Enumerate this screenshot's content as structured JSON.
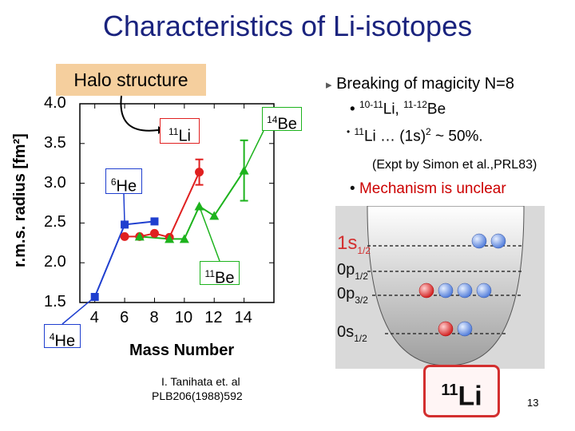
{
  "slide": {
    "title": "Characteristics of Li-isotopes",
    "halo_label": "Halo structure",
    "right": {
      "magicity": "Breaking of magicity N=8",
      "bullet1_mass1": "10-11",
      "bullet1_sym1": "Li, ",
      "bullet1_mass2": "11-12",
      "bullet1_sym2": "Be",
      "bullet2_mass": "11",
      "bullet2_rest": "Li … (1s)",
      "bullet2_sup": "2",
      "bullet2_tail": " ~ 50%.",
      "expt": "(Expt by Simon et al.,PRL83)",
      "mechanism": "Mechanism is unclear"
    },
    "citation_line1": "I. Tanihata et. al",
    "citation_line2": "PLB206(1988)592",
    "page_number": "13",
    "big_label_mass": "11",
    "big_label_sym": "Li"
  },
  "chart_data": {
    "type": "scatter",
    "xlabel": "Mass Number",
    "ylabel": "r.m.s. radius [fm²]",
    "xlim": [
      3,
      16
    ],
    "ylim": [
      1.5,
      4.0
    ],
    "xticks": [
      4,
      6,
      8,
      10,
      12,
      14
    ],
    "yticks": [
      1.5,
      2.0,
      2.5,
      3.0,
      3.5,
      4.0
    ],
    "series": [
      {
        "name": "He",
        "color": "#1f3fcf",
        "marker": "square",
        "points": [
          [
            4,
            1.57
          ],
          [
            6,
            2.48
          ],
          [
            8,
            2.52
          ]
        ]
      },
      {
        "name": "Li",
        "color": "#e02020",
        "marker": "circle",
        "points": [
          [
            6,
            2.33
          ],
          [
            7,
            2.33
          ],
          [
            8,
            2.37
          ],
          [
            9,
            2.32
          ],
          [
            11,
            3.14
          ]
        ],
        "errors": [
          [
            11,
            0.16
          ]
        ]
      },
      {
        "name": "Be",
        "color": "#1db31d",
        "marker": "triangle",
        "points": [
          [
            7,
            2.33
          ],
          [
            9,
            2.3
          ],
          [
            10,
            2.3
          ],
          [
            11,
            2.71
          ],
          [
            12,
            2.59
          ],
          [
            14,
            3.16
          ]
        ],
        "errors": [
          [
            14,
            0.38
          ]
        ]
      }
    ],
    "annotations": [
      {
        "mass": "4",
        "sym": "He",
        "color": "#1f3fcf"
      },
      {
        "mass": "6",
        "sym": "He",
        "color": "#1f3fcf"
      },
      {
        "mass": "11",
        "sym": "Li",
        "color": "#e02020"
      },
      {
        "mass": "14",
        "sym": "Be",
        "color": "#1db31d"
      },
      {
        "mass": "11",
        "sym": "Be",
        "color": "#1db31d"
      }
    ]
  },
  "shell_diagram": {
    "levels": [
      {
        "n": "1s",
        "sub": "1/2",
        "color": "#d32f2f",
        "red": 0,
        "blue": 2
      },
      {
        "n": "0p",
        "sub": "1/2",
        "color": "#111111",
        "red": 0,
        "blue": 0
      },
      {
        "n": "0p",
        "sub": "3/2",
        "color": "#111111",
        "red": 1,
        "blue": 3
      },
      {
        "n": "0s",
        "sub": "1/2",
        "color": "#111111",
        "red": 1,
        "blue": 1
      }
    ]
  },
  "colors": {
    "title": "#1a237e",
    "accent_red": "#cc0000",
    "halo_bg": "#f5cf9e"
  }
}
